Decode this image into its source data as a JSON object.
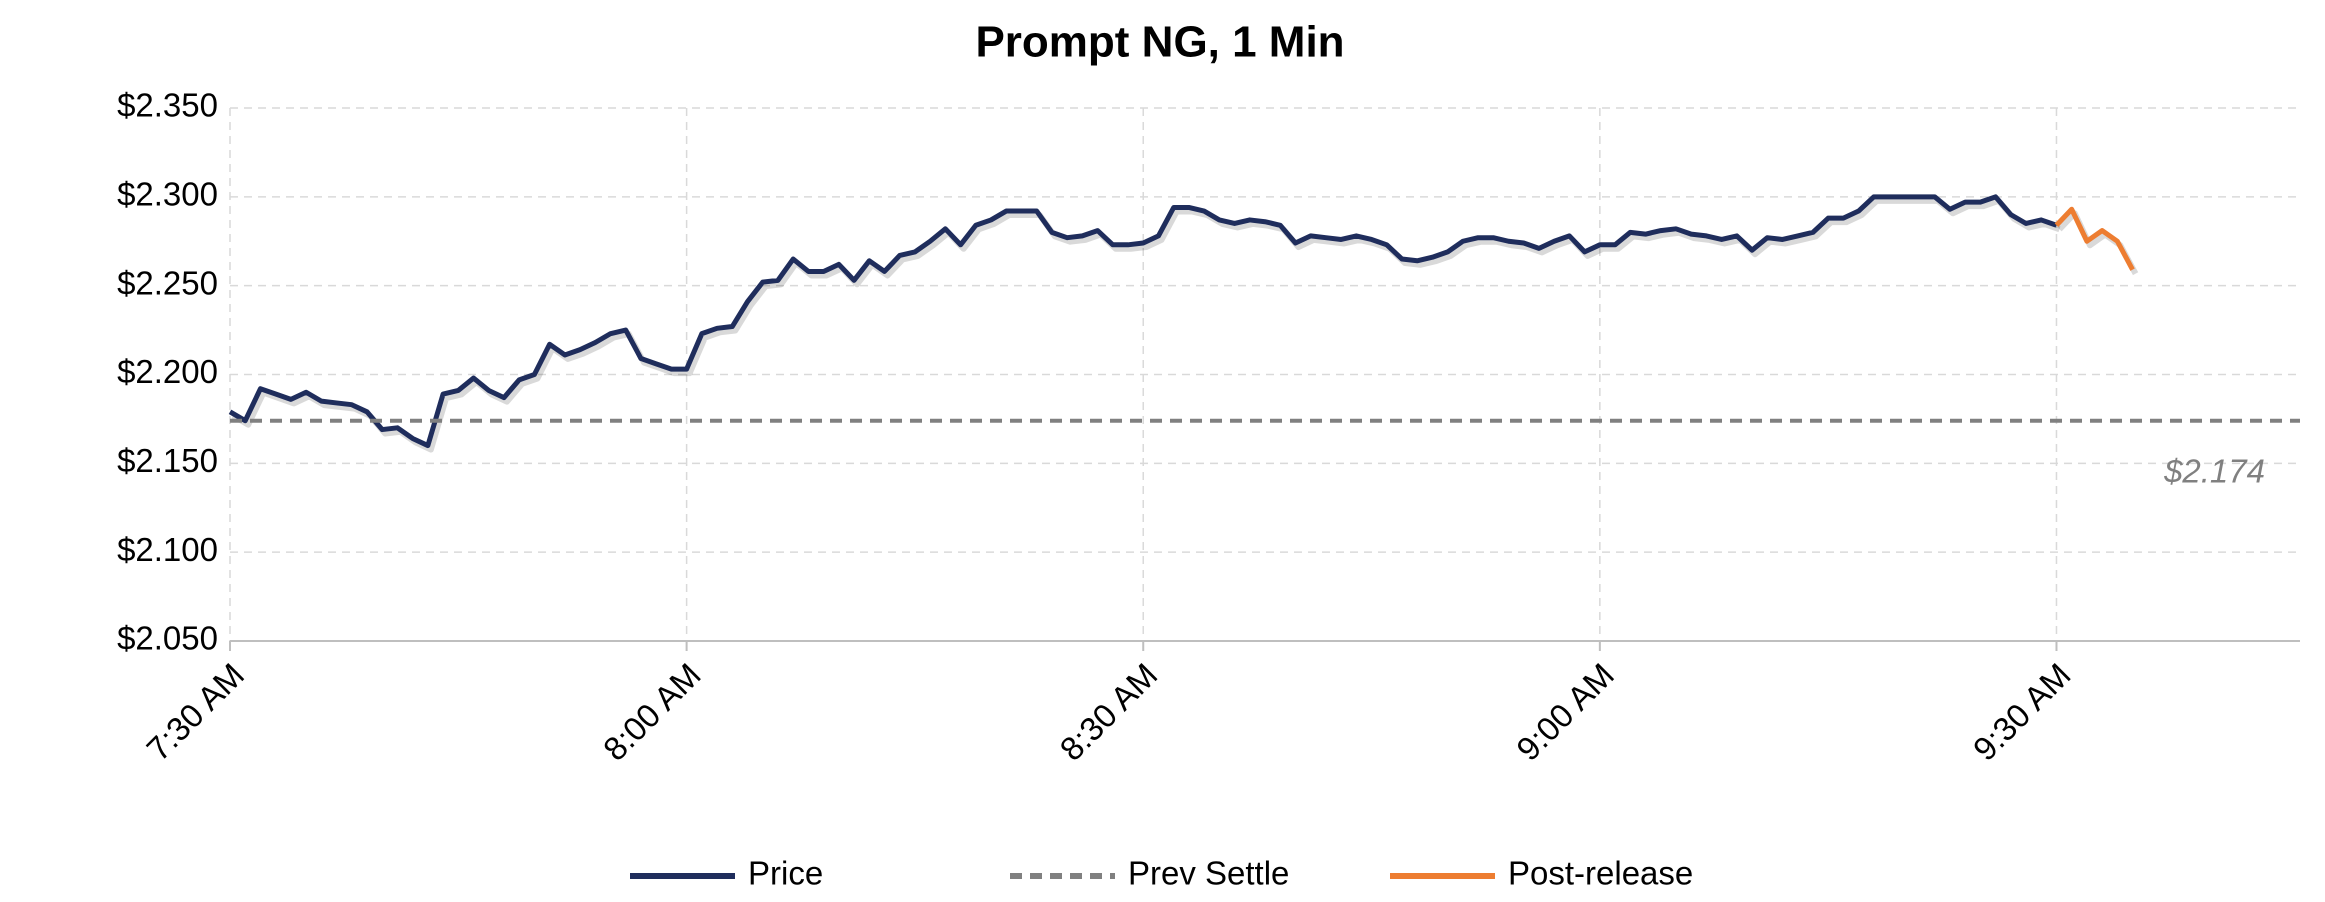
{
  "chart_data": {
    "type": "line",
    "title": "Prompt NG, 1 Min",
    "xlim": [
      "7:30 AM",
      "9:46 AM"
    ],
    "xticks": [
      "7:30 AM",
      "8:00 AM",
      "8:30 AM",
      "9:00 AM",
      "9:30 AM"
    ],
    "ylim": [
      2.05,
      2.35
    ],
    "yticks": [
      {
        "value": 2.05,
        "label": "$2.050"
      },
      {
        "value": 2.1,
        "label": "$2.100"
      },
      {
        "value": 2.15,
        "label": "$2.150"
      },
      {
        "value": 2.2,
        "label": "$2.200"
      },
      {
        "value": 2.25,
        "label": "$2.250"
      },
      {
        "value": 2.3,
        "label": "$2.300"
      },
      {
        "value": 2.35,
        "label": "$2.350"
      }
    ],
    "grid": true,
    "legend": "bottom",
    "series": [
      {
        "name": "Price",
        "color": "#1f2d5c",
        "x": [
          "7:30 AM",
          "7:31 AM",
          "7:32 AM",
          "7:33 AM",
          "7:34 AM",
          "7:35 AM",
          "7:36 AM",
          "7:37 AM",
          "7:38 AM",
          "7:39 AM",
          "7:40 AM",
          "7:41 AM",
          "7:42 AM",
          "7:43 AM",
          "7:44 AM",
          "7:45 AM",
          "7:46 AM",
          "7:47 AM",
          "7:48 AM",
          "7:49 AM",
          "7:50 AM",
          "7:51 AM",
          "7:52 AM",
          "7:53 AM",
          "7:54 AM",
          "7:55 AM",
          "7:56 AM",
          "7:57 AM",
          "7:58 AM",
          "7:59 AM",
          "8:00 AM",
          "8:01 AM",
          "8:02 AM",
          "8:03 AM",
          "8:04 AM",
          "8:05 AM",
          "8:06 AM",
          "8:07 AM",
          "8:08 AM",
          "8:09 AM",
          "8:10 AM",
          "8:11 AM",
          "8:12 AM",
          "8:13 AM",
          "8:14 AM",
          "8:15 AM",
          "8:16 AM",
          "8:17 AM",
          "8:18 AM",
          "8:19 AM",
          "8:20 AM",
          "8:21 AM",
          "8:22 AM",
          "8:23 AM",
          "8:24 AM",
          "8:25 AM",
          "8:26 AM",
          "8:27 AM",
          "8:28 AM",
          "8:29 AM",
          "8:30 AM",
          "8:31 AM",
          "8:32 AM",
          "8:33 AM",
          "8:34 AM",
          "8:35 AM",
          "8:36 AM",
          "8:37 AM",
          "8:38 AM",
          "8:39 AM",
          "8:40 AM",
          "8:41 AM",
          "8:42 AM",
          "8:43 AM",
          "8:44 AM",
          "8:45 AM",
          "8:46 AM",
          "8:47 AM",
          "8:48 AM",
          "8:49 AM",
          "8:50 AM",
          "8:51 AM",
          "8:52 AM",
          "8:53 AM",
          "8:54 AM",
          "8:55 AM",
          "8:56 AM",
          "8:57 AM",
          "8:58 AM",
          "8:59 AM",
          "9:00 AM",
          "9:01 AM",
          "9:02 AM",
          "9:03 AM",
          "9:04 AM",
          "9:05 AM",
          "9:06 AM",
          "9:07 AM",
          "9:08 AM",
          "9:09 AM",
          "9:10 AM",
          "9:11 AM",
          "9:12 AM",
          "9:13 AM",
          "9:14 AM",
          "9:15 AM",
          "9:16 AM",
          "9:17 AM",
          "9:18 AM",
          "9:19 AM",
          "9:20 AM",
          "9:21 AM",
          "9:22 AM",
          "9:23 AM",
          "9:24 AM",
          "9:25 AM",
          "9:26 AM",
          "9:27 AM",
          "9:28 AM",
          "9:29 AM",
          "9:30 AM"
        ],
        "values": [
          2.179,
          2.174,
          2.192,
          2.189,
          2.186,
          2.19,
          2.185,
          2.184,
          2.183,
          2.179,
          2.169,
          2.17,
          2.164,
          2.16,
          2.189,
          2.191,
          2.198,
          2.191,
          2.187,
          2.197,
          2.2,
          2.217,
          2.211,
          2.214,
          2.218,
          2.223,
          2.225,
          2.209,
          2.206,
          2.203,
          2.203,
          2.223,
          2.226,
          2.227,
          2.241,
          2.252,
          2.253,
          2.265,
          2.258,
          2.258,
          2.262,
          2.253,
          2.264,
          2.258,
          2.267,
          2.269,
          2.275,
          2.282,
          2.273,
          2.284,
          2.287,
          2.292,
          2.292,
          2.292,
          2.28,
          2.277,
          2.278,
          2.281,
          2.273,
          2.273,
          2.274,
          2.278,
          2.294,
          2.294,
          2.292,
          2.287,
          2.285,
          2.287,
          2.286,
          2.284,
          2.274,
          2.278,
          2.277,
          2.276,
          2.278,
          2.276,
          2.273,
          2.265,
          2.264,
          2.266,
          2.269,
          2.275,
          2.277,
          2.277,
          2.275,
          2.274,
          2.271,
          2.275,
          2.278,
          2.269,
          2.273,
          2.273,
          2.28,
          2.279,
          2.281,
          2.282,
          2.279,
          2.278,
          2.276,
          2.278,
          2.27,
          2.277,
          2.276,
          2.278,
          2.28,
          2.288,
          2.288,
          2.292,
          2.3,
          2.3,
          2.3,
          2.3,
          2.3,
          2.293,
          2.297,
          2.297,
          2.3,
          2.29,
          2.285,
          2.287,
          2.284
        ]
      },
      {
        "name": "Prev Settle",
        "color": "#808080",
        "dashed": true,
        "value": 2.174,
        "value_label": "$2.174"
      },
      {
        "name": "Post-release",
        "color": "#ed7d31",
        "x": [
          "9:30 AM",
          "9:31 AM",
          "9:32 AM",
          "9:33 AM",
          "9:34 AM",
          "9:35 AM"
        ],
        "values": [
          2.284,
          2.293,
          2.275,
          2.281,
          2.275,
          2.259
        ]
      }
    ]
  }
}
